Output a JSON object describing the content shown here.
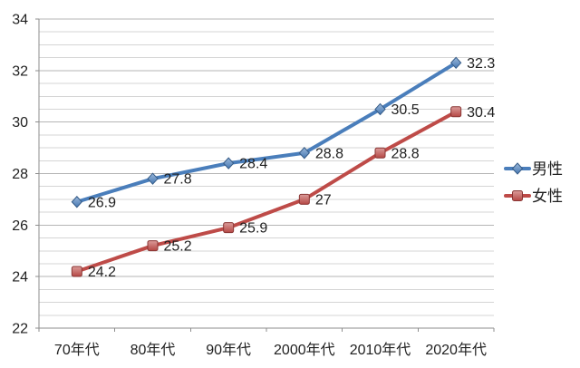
{
  "chart_data": {
    "type": "line",
    "title": "",
    "xlabel": "",
    "ylabel": "",
    "categories": [
      "70年代",
      "80年代",
      "90年代",
      "2000年代",
      "2010年代",
      "2020年代"
    ],
    "series": [
      {
        "key": "male",
        "name": "男性",
        "values": [
          26.9,
          27.8,
          28.4,
          28.8,
          30.5,
          32.3
        ],
        "data_labels": [
          "26.9",
          "27.8",
          "28.4",
          "28.8",
          "30.5",
          "32.3"
        ],
        "color": "#4A7EBB",
        "marker": "diamond"
      },
      {
        "key": "female",
        "name": "女性",
        "values": [
          24.2,
          25.2,
          25.9,
          27,
          28.8,
          30.4
        ],
        "data_labels": [
          "24.2",
          "25.2",
          "25.9",
          "27",
          "28.8",
          "30.4"
        ],
        "color": "#BE4B48",
        "marker": "square"
      }
    ],
    "ylim": [
      22,
      34
    ],
    "y_major_step": 2,
    "y_minor_step": 0.5,
    "y_tick_labels": [
      "22",
      "24",
      "26",
      "28",
      "30",
      "32",
      "34"
    ],
    "grid": true,
    "legend_position": "right",
    "colors": {
      "background": "#FFFFFF",
      "grid_minor": "#D5D5D5",
      "grid_major": "#B5B5B5",
      "axis": "#8E8E8E",
      "text": "#1F1F1F"
    }
  }
}
